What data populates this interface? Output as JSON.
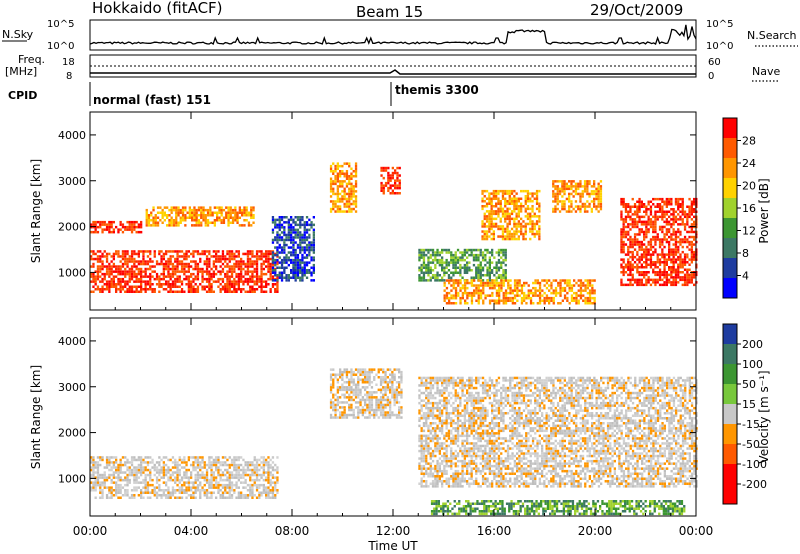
{
  "header": {
    "station": "Hokkaido (fitACF)",
    "beam": "Beam 15",
    "date": "29/Oct/2009"
  },
  "top_panels": {
    "nsky_label": "N.Sky",
    "nsky_ticks": [
      "10^5",
      "10^0"
    ],
    "nsearch_label": "N.Search",
    "nsearch_ticks": [
      "10^5",
      "10^0"
    ],
    "freq_label": "Freq.",
    "freq_unit": "[MHz]",
    "freq_ticks": [
      "18",
      "8"
    ],
    "nave_label": "Nave",
    "nave_ticks": [
      "60",
      "0"
    ],
    "cpid_label": "CPID",
    "cpid_segments": [
      {
        "label": "normal (fast) 151",
        "start_hour": 0,
        "end_hour": 12.0
      },
      {
        "label": "themis 3300",
        "start_hour": 12.0,
        "end_hour": 24.0
      }
    ]
  },
  "chart_data": [
    {
      "type": "heatmap",
      "title": "",
      "xlabel": "",
      "ylabel": "Slant Range [km]",
      "xlim_hours": [
        0,
        24
      ],
      "ylim": [
        180,
        4500
      ],
      "yticks": [
        "1000",
        "2000",
        "3000",
        "4000"
      ],
      "colorbar": {
        "label": "Power [dB]",
        "ticks": [
          "28",
          "24",
          "20",
          "16",
          "12",
          "8",
          "4"
        ],
        "colors": [
          "#ff0000",
          "#ff5a00",
          "#ff9600",
          "#ffd200",
          "#a0d22d",
          "#3c9632",
          "#3c7864",
          "#1e3ca0",
          "#0000ff"
        ]
      },
      "echo_regions": [
        {
          "t0": 0.0,
          "t1": 7.4,
          "r0": 550,
          "r1": 1450,
          "level": "red"
        },
        {
          "t0": 0.0,
          "t1": 2.0,
          "r0": 1850,
          "r1": 2100,
          "level": "red"
        },
        {
          "t0": 2.2,
          "t1": 6.5,
          "r0": 2000,
          "r1": 2400,
          "level": "orange"
        },
        {
          "t0": 7.2,
          "t1": 8.9,
          "r0": 800,
          "r1": 2200,
          "level": "blue"
        },
        {
          "t0": 9.5,
          "t1": 10.5,
          "r0": 2300,
          "r1": 3400,
          "level": "orange"
        },
        {
          "t0": 11.5,
          "t1": 12.3,
          "r0": 2700,
          "r1": 3300,
          "level": "red"
        },
        {
          "t0": 13.0,
          "t1": 16.5,
          "r0": 800,
          "r1": 1500,
          "level": "green"
        },
        {
          "t0": 14.0,
          "t1": 20.0,
          "r0": 300,
          "r1": 800,
          "level": "orange"
        },
        {
          "t0": 15.5,
          "t1": 17.8,
          "r0": 1700,
          "r1": 2800,
          "level": "orange"
        },
        {
          "t0": 18.3,
          "t1": 20.2,
          "r0": 2300,
          "r1": 3000,
          "level": "orange"
        },
        {
          "t0": 21.0,
          "t1": 24.0,
          "r0": 700,
          "r1": 2600,
          "level": "red"
        }
      ]
    },
    {
      "type": "heatmap",
      "title": "",
      "xlabel": "Time UT",
      "ylabel": "Slant Range [km]",
      "xlim_hours": [
        0,
        24
      ],
      "ylim": [
        180,
        4500
      ],
      "yticks": [
        "1000",
        "2000",
        "3000",
        "4000"
      ],
      "xticks": [
        "00:00",
        "04:00",
        "08:00",
        "12:00",
        "16:00",
        "20:00",
        "00:00"
      ],
      "colorbar": {
        "label": "Velocity [m s⁻¹]",
        "ticks": [
          "200",
          "100",
          "50",
          "15",
          "-15",
          "-50",
          "-100",
          "-200"
        ],
        "colors": [
          "#1e3ca0",
          "#3c7864",
          "#3c9632",
          "#78c83c",
          "#c8c8c8",
          "#ff9600",
          "#ff5a00",
          "#ff0000",
          "#ff0000"
        ]
      },
      "echo_regions": [
        {
          "t0": 0.0,
          "t1": 7.4,
          "r0": 550,
          "r1": 1450,
          "level": "grey"
        },
        {
          "t0": 9.5,
          "t1": 12.3,
          "r0": 2300,
          "r1": 3400,
          "level": "grey"
        },
        {
          "t0": 13.0,
          "t1": 24.0,
          "r0": 800,
          "r1": 3200,
          "level": "grey"
        },
        {
          "t0": 13.5,
          "t1": 23.5,
          "r0": 200,
          "r1": 500,
          "level": "green"
        }
      ]
    }
  ]
}
